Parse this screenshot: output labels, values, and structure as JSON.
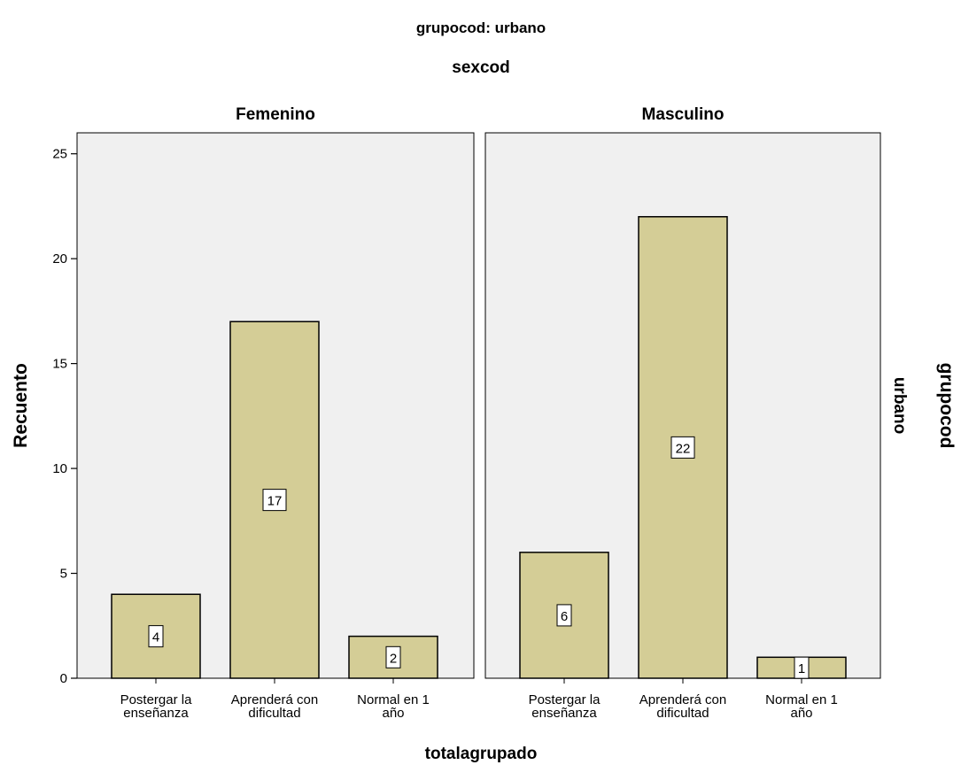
{
  "chart_data": {
    "type": "bar",
    "title": "grupocod: urbano",
    "column_panel_title": "sexcod",
    "row_panel_title": "grupocod",
    "row_panel_value": "urbano",
    "xlabel": "totalagrupado",
    "ylabel": "Recuento",
    "ylim": [
      0,
      26
    ],
    "yticks": [
      0,
      5,
      10,
      15,
      20,
      25
    ],
    "grid": false,
    "bar_color": "#d4cd96",
    "panel_background": "#f0f0f0",
    "categories": [
      [
        "Postergar la",
        "enseñanza"
      ],
      [
        "Aprenderá con",
        "dificultad"
      ],
      [
        "Normal en 1",
        "año"
      ]
    ],
    "panels": [
      {
        "name": "Femenino",
        "values": [
          4,
          17,
          2
        ]
      },
      {
        "name": "Masculino",
        "values": [
          6,
          22,
          1
        ]
      }
    ]
  }
}
